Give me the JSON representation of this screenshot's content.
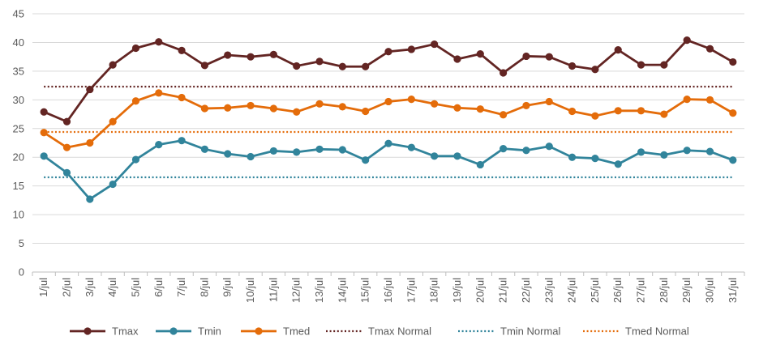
{
  "chart_data": {
    "type": "line",
    "title": "",
    "xlabel": "",
    "ylabel": "",
    "ylim": [
      0,
      45
    ],
    "yticks": [
      0,
      5,
      10,
      15,
      20,
      25,
      30,
      35,
      40,
      45
    ],
    "grid": true,
    "legend_position": "bottom",
    "categories": [
      "1/jul",
      "2/jul",
      "3/jul",
      "4/jul",
      "5/jul",
      "6/jul",
      "7/jul",
      "8/jul",
      "9/jul",
      "10/jul",
      "11/jul",
      "12/jul",
      "13/jul",
      "14/jul",
      "15/jul",
      "16/jul",
      "17/jul",
      "18/jul",
      "19/jul",
      "20/jul",
      "21/jul",
      "22/jul",
      "23/jul",
      "24/jul",
      "25/jul",
      "26/jul",
      "27/jul",
      "28/jul",
      "29/jul",
      "30/jul",
      "31/jul"
    ],
    "series": [
      {
        "name": "Tmax",
        "color": "#632523",
        "style": "solid-marker",
        "values": [
          27.9,
          26.2,
          31.8,
          36.1,
          39.0,
          40.1,
          38.6,
          36.0,
          37.8,
          37.5,
          37.9,
          35.9,
          36.7,
          35.8,
          35.8,
          38.4,
          38.8,
          39.7,
          37.1,
          38.0,
          34.7,
          37.6,
          37.5,
          35.9,
          35.3,
          38.7,
          36.1,
          36.1,
          40.4,
          38.9,
          36.6
        ]
      },
      {
        "name": "Tmin",
        "color": "#31849B",
        "style": "solid-marker",
        "values": [
          20.2,
          17.3,
          12.7,
          15.3,
          19.6,
          22.2,
          22.9,
          21.4,
          20.6,
          20.1,
          21.1,
          20.9,
          21.4,
          21.3,
          19.5,
          22.4,
          21.7,
          20.2,
          20.2,
          18.7,
          21.5,
          21.2,
          21.9,
          20.0,
          19.8,
          18.8,
          20.9,
          20.4,
          21.2,
          21.0,
          19.5
        ]
      },
      {
        "name": "Tmed",
        "color": "#E46C0A",
        "style": "solid-marker",
        "values": [
          24.3,
          21.7,
          22.5,
          26.2,
          29.8,
          31.2,
          30.4,
          28.5,
          28.6,
          29.0,
          28.5,
          27.9,
          29.3,
          28.8,
          28.0,
          29.7,
          30.1,
          29.3,
          28.6,
          28.4,
          27.4,
          29.0,
          29.7,
          28.0,
          27.2,
          28.1,
          28.1,
          27.5,
          30.1,
          30.0,
          27.7
        ]
      },
      {
        "name": "Tmax Normal",
        "color": "#632523",
        "style": "dotted",
        "values": [
          32.3,
          32.3,
          32.3,
          32.3,
          32.3,
          32.3,
          32.3,
          32.3,
          32.3,
          32.3,
          32.3,
          32.3,
          32.3,
          32.3,
          32.3,
          32.3,
          32.3,
          32.3,
          32.3,
          32.3,
          32.3,
          32.3,
          32.3,
          32.3,
          32.3,
          32.3,
          32.3,
          32.3,
          32.3,
          32.3,
          32.3
        ]
      },
      {
        "name": "Tmin Normal",
        "color": "#31849B",
        "style": "dotted",
        "values": [
          16.5,
          16.5,
          16.5,
          16.5,
          16.5,
          16.5,
          16.5,
          16.5,
          16.5,
          16.5,
          16.5,
          16.5,
          16.5,
          16.5,
          16.5,
          16.5,
          16.5,
          16.5,
          16.5,
          16.5,
          16.5,
          16.5,
          16.5,
          16.5,
          16.5,
          16.5,
          16.5,
          16.5,
          16.5,
          16.5,
          16.5
        ]
      },
      {
        "name": "Tmed Normal",
        "color": "#E46C0A",
        "style": "dotted",
        "values": [
          24.4,
          24.4,
          24.4,
          24.4,
          24.4,
          24.4,
          24.4,
          24.4,
          24.4,
          24.4,
          24.4,
          24.4,
          24.4,
          24.4,
          24.4,
          24.4,
          24.4,
          24.4,
          24.4,
          24.4,
          24.4,
          24.4,
          24.4,
          24.4,
          24.4,
          24.4,
          24.4,
          24.4,
          24.4,
          24.4,
          24.4
        ]
      }
    ],
    "gridline_color": "#D9D9D9",
    "axis_color": "#BFBFBF",
    "text_color": "#595959"
  }
}
